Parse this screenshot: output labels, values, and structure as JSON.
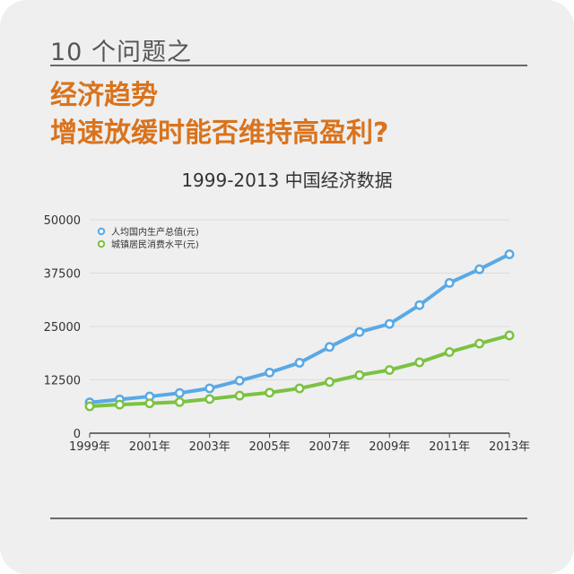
{
  "header": {
    "section_label": "10 个问题之",
    "headline_line1": "经济趋势",
    "headline_line2": "增速放缓时能否维持高盈利?"
  },
  "colors": {
    "accent": "#d9731d",
    "series_blue": "#5aa9e6",
    "series_green": "#7cc242",
    "background": "#efefef"
  },
  "chart_data": {
    "type": "line",
    "title": "1999-2013 中国经济数据",
    "x": [
      1999,
      2000,
      2001,
      2002,
      2003,
      2004,
      2005,
      2006,
      2007,
      2008,
      2009,
      2010,
      2011,
      2012,
      2013
    ],
    "xtick_labels": [
      "1999年",
      "2001年",
      "2003年",
      "2005年",
      "2007年",
      "2009年",
      "2011年",
      "2013年"
    ],
    "xtick_values": [
      1999,
      2001,
      2003,
      2005,
      2007,
      2009,
      2011,
      2013
    ],
    "ylim": [
      0,
      50000
    ],
    "yticks": [
      0,
      12500,
      25000,
      37500,
      50000
    ],
    "ytick_labels": [
      "0",
      "12500",
      "25000",
      "37500",
      "50000"
    ],
    "grid": true,
    "legend_position": "top-left",
    "series": [
      {
        "name": "人均国内生产总值(元)",
        "color": "#5aa9e6",
        "values": [
          7200,
          7900,
          8600,
          9400,
          10500,
          12300,
          14200,
          16500,
          20200,
          23700,
          25600,
          30000,
          35200,
          38400,
          41900
        ]
      },
      {
        "name": "城镇居民消费水平(元)",
        "color": "#7cc242",
        "values": [
          6300,
          6700,
          7000,
          7300,
          8000,
          8800,
          9500,
          10500,
          12000,
          13600,
          14800,
          16600,
          19000,
          21000,
          22900
        ]
      }
    ]
  }
}
